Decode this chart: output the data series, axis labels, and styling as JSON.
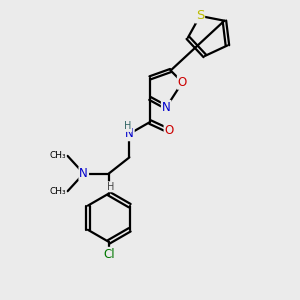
{
  "bg_color": "#ebebeb",
  "atom_colors": {
    "C": "#000000",
    "N": "#0000cc",
    "O": "#cc0000",
    "S": "#bbbb00",
    "Cl": "#007700",
    "H": "#444444"
  },
  "bond_color": "#000000",
  "bond_width": 1.6,
  "font_size": 8.5
}
